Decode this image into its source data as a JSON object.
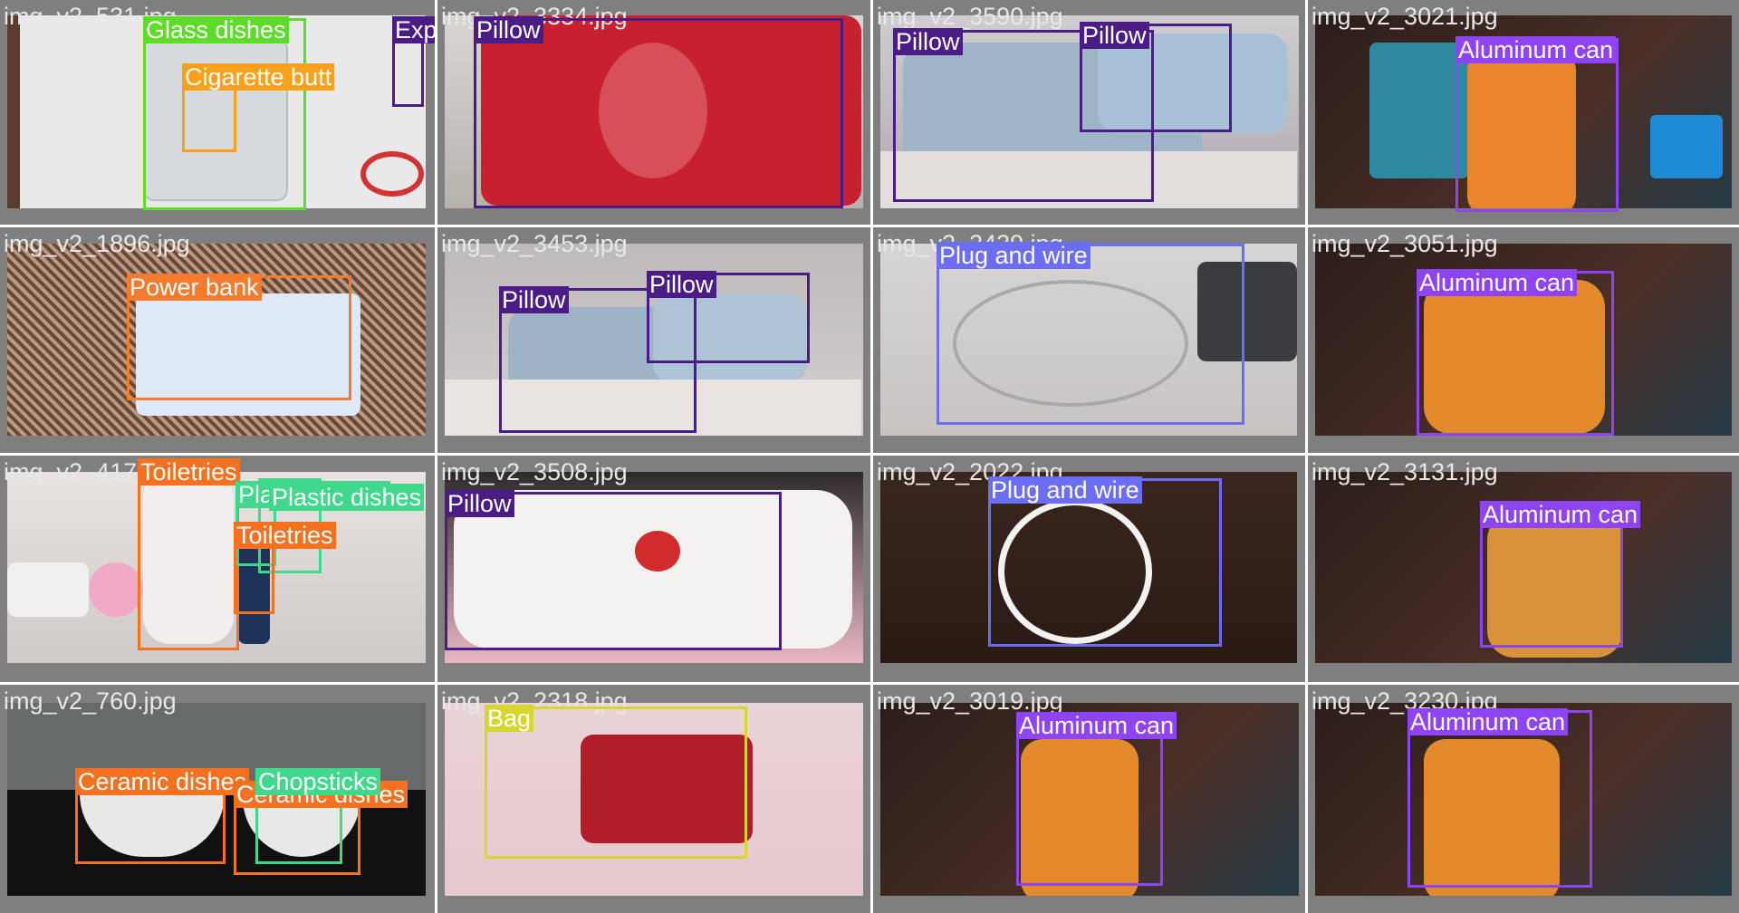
{
  "colors": {
    "Glass dishes": "#5ddc2a",
    "Cigarette butt": "#f9a11d",
    "Expired medicine": "#4b1c86",
    "Pillow": "#4b1c86",
    "Aluminum can": "#8e44f2",
    "Power bank": "#f47a2e",
    "Plug and wire": "#6b6ef4",
    "Toiletries": "#f4711f",
    "Plastic dishes": "#3fd88c",
    "Ceramic dishes": "#f4711f",
    "Chopsticks": "#3fd88c",
    "Bag": "#d6d62f"
  },
  "cells": [
    {
      "filename": "img_v2_531.jpg",
      "labels": [
        "Glass dishes",
        "Cigarette butt",
        "Expired medicine"
      ]
    },
    {
      "filename": "img_v2_3334.jpg",
      "labels": [
        "Pillow"
      ]
    },
    {
      "filename": "img_v2_3590.jpg",
      "labels": [
        "Pillow",
        "Pillow"
      ]
    },
    {
      "filename": "img_v2_3021.jpg",
      "labels": [
        "Aluminum can"
      ]
    },
    {
      "filename": "img_v2_1896.jpg",
      "labels": [
        "Power bank"
      ]
    },
    {
      "filename": "img_v2_3453.jpg",
      "labels": [
        "Pillow",
        "Pillow"
      ]
    },
    {
      "filename": "img_v2_2439.jpg",
      "labels": [
        "Plug and wire"
      ]
    },
    {
      "filename": "img_v2_3051.jpg",
      "labels": [
        "Aluminum can"
      ]
    },
    {
      "filename": "img_v2_4173.jpg",
      "labels": [
        "Toiletries",
        "Plastic dishes",
        "Plastic dishes",
        "Toiletries"
      ]
    },
    {
      "filename": "img_v2_3508.jpg",
      "labels": [
        "Pillow"
      ]
    },
    {
      "filename": "img_v2_2022.jpg",
      "labels": [
        "Plug and wire"
      ]
    },
    {
      "filename": "img_v2_3131.jpg",
      "labels": [
        "Aluminum can"
      ]
    },
    {
      "filename": "img_v2_760.jpg",
      "labels": [
        "Ceramic dishes",
        "Ceramic dishes",
        "Chopsticks"
      ]
    },
    {
      "filename": "img_v2_2318.jpg",
      "labels": [
        "Bag"
      ]
    },
    {
      "filename": "img_v2_3019.jpg",
      "labels": [
        "Aluminum can"
      ]
    },
    {
      "filename": "img_v2_3230.jpg",
      "labels": [
        "Aluminum can"
      ]
    }
  ]
}
